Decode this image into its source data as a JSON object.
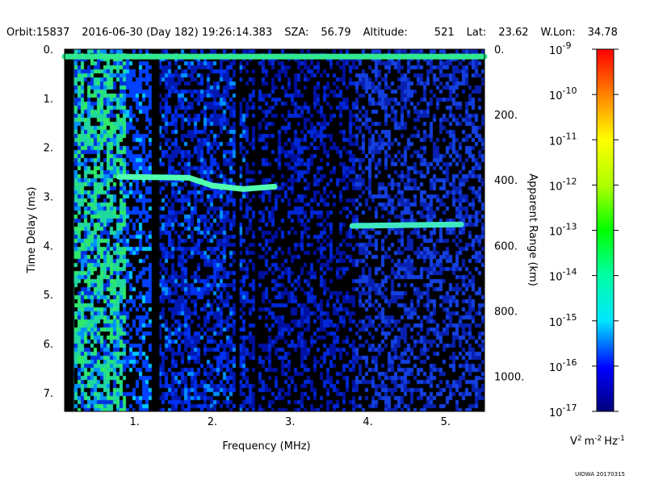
{
  "header": {
    "orbit": "Orbit:15837",
    "datetime": "2016-06-30 (Day 182) 19:26:14.383",
    "sza_label": "SZA:",
    "sza": "56.79",
    "altitude_label": "Altitude:",
    "altitude": "521",
    "lat_label": "Lat:",
    "lat": "23.62",
    "wlon_label": "W.Lon:",
    "wlon": "34.78"
  },
  "chart_data": {
    "type": "heatmap",
    "xlabel": "Frequency (MHz)",
    "ylabel": "Time Delay (ms)",
    "y2label": "Apparent Range (km)",
    "xlim": [
      0.1,
      5.5
    ],
    "ylim": [
      0,
      7.38
    ],
    "y2lim": [
      0,
      1107
    ],
    "xticks": [
      {
        "v": 1,
        "l": "1."
      },
      {
        "v": 2,
        "l": "2."
      },
      {
        "v": 3,
        "l": "3."
      },
      {
        "v": 4,
        "l": "4."
      },
      {
        "v": 5,
        "l": "5."
      }
    ],
    "yticks": [
      {
        "v": 0,
        "l": "0."
      },
      {
        "v": 1,
        "l": "1."
      },
      {
        "v": 2,
        "l": "2."
      },
      {
        "v": 3,
        "l": "3."
      },
      {
        "v": 4,
        "l": "4."
      },
      {
        "v": 5,
        "l": "5."
      },
      {
        "v": 6,
        "l": "6."
      },
      {
        "v": 7,
        "l": "7."
      }
    ],
    "y2ticks": [
      {
        "v": 0,
        "l": "0."
      },
      {
        "v": 200,
        "l": "200."
      },
      {
        "v": 400,
        "l": "400."
      },
      {
        "v": 600,
        "l": "600."
      },
      {
        "v": 800,
        "l": "800."
      },
      {
        "v": 1000,
        "l": "1000."
      }
    ],
    "traces": [
      {
        "name": "local-echo",
        "points": [
          [
            0.1,
            0.15
          ],
          [
            5.5,
            0.15
          ]
        ],
        "level": -13.5
      },
      {
        "name": "ionospheric-echo",
        "points": [
          [
            0.8,
            2.6
          ],
          [
            1.7,
            2.62
          ],
          [
            2.0,
            2.78
          ],
          [
            2.4,
            2.85
          ],
          [
            2.8,
            2.8
          ]
        ],
        "level": -14.5
      },
      {
        "name": "surface-echo",
        "points": [
          [
            3.8,
            3.6
          ],
          [
            5.2,
            3.57
          ]
        ],
        "level": -14.5
      }
    ],
    "colorbar": {
      "label": "V 2 m -2 Hz -1",
      "unit_base": "V",
      "unit_parts": [
        "2",
        "m",
        "-2",
        "Hz",
        "-1"
      ],
      "log_min": -17,
      "log_max": -9,
      "ticks": [
        {
          "v": -9,
          "l": "-9"
        },
        {
          "v": -10,
          "l": "-10"
        },
        {
          "v": -11,
          "l": "-11"
        },
        {
          "v": -12,
          "l": "-12"
        },
        {
          "v": -13,
          "l": "-13"
        },
        {
          "v": -14,
          "l": "-14"
        },
        {
          "v": -15,
          "l": "-15"
        },
        {
          "v": -16,
          "l": "-16"
        },
        {
          "v": -17,
          "l": "-17"
        }
      ],
      "tick_base": "10"
    }
  },
  "credit": "UIOWA 20170315"
}
